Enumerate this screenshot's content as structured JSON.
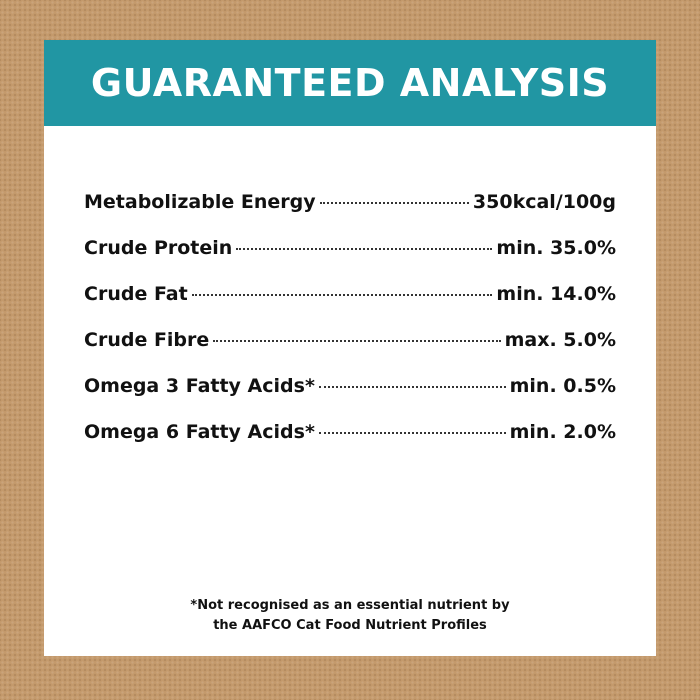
{
  "banner": {
    "title": "GUARANTEED ANALYSIS"
  },
  "colors": {
    "banner": "#2196a3",
    "background": "#c49a6c",
    "card": "#ffffff",
    "text": "#111111"
  },
  "rows": [
    {
      "label": "Metabolizable Energy",
      "value": "350kcal/100g"
    },
    {
      "label": "Crude Protein",
      "value": "min. 35.0%"
    },
    {
      "label": "Crude Fat",
      "value": "min. 14.0%"
    },
    {
      "label": "Crude Fibre",
      "value": "max. 5.0%"
    },
    {
      "label": "Omega 3 Fatty Acids*",
      "value": "min. 0.5%"
    },
    {
      "label": "Omega 6 Fatty Acids*",
      "value": "min. 2.0%"
    }
  ],
  "footnote": {
    "line1": "*Not recognised as an essential nutrient by",
    "line2": "the AAFCO Cat Food Nutrient Profiles"
  }
}
